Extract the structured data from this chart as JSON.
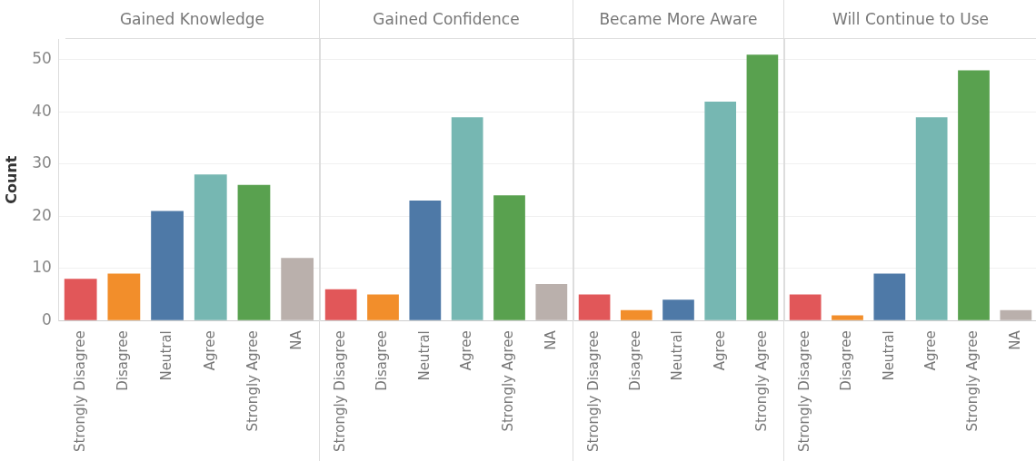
{
  "chart_data": [
    {
      "type": "bar",
      "title": "Gained Knowledge",
      "ylabel": "Count",
      "categories": [
        "Strongly Disagree",
        "Disagree",
        "Neutral",
        "Agree",
        "Strongly Agree",
        "NA"
      ],
      "values": [
        8,
        9,
        21,
        28,
        26,
        12
      ],
      "colors": [
        "#e15759",
        "#f28e2b",
        "#4e79a7",
        "#76b7b2",
        "#59a14f",
        "#bab0ac"
      ],
      "ylim": [
        0,
        54
      ],
      "yticks": [
        0,
        10,
        20,
        30,
        40,
        50
      ],
      "grid": "y"
    },
    {
      "type": "bar",
      "title": "Gained Confidence",
      "categories": [
        "Strongly Disagree",
        "Disagree",
        "Neutral",
        "Agree",
        "Strongly Agree",
        "NA"
      ],
      "values": [
        6,
        5,
        23,
        39,
        24,
        7
      ],
      "colors": [
        "#e15759",
        "#f28e2b",
        "#4e79a7",
        "#76b7b2",
        "#59a14f",
        "#bab0ac"
      ],
      "ylim": [
        0,
        54
      ],
      "yticks": [
        0,
        10,
        20,
        30,
        40,
        50
      ],
      "grid": "y",
      "tick_labels": "x"
    },
    {
      "type": "bar",
      "title": "Became More Aware",
      "categories": [
        "Strongly Disagree",
        "Disagree",
        "Neutral",
        "Agree",
        "Strongly Agree"
      ],
      "values": [
        5,
        2,
        4,
        42,
        51
      ],
      "colors": [
        "#e15759",
        "#f28e2b",
        "#4e79a7",
        "#76b7b2",
        "#59a14f"
      ],
      "ylim": [
        0,
        54
      ],
      "yticks": [
        0,
        10,
        20,
        30,
        40,
        50
      ],
      "grid": "y",
      "tick_labels": "x"
    },
    {
      "type": "bar",
      "title": "Will Continue to Use",
      "categories": [
        "Strongly Disagree",
        "Disagree",
        "Neutral",
        "Agree",
        "Strongly Agree",
        "NA"
      ],
      "values": [
        5,
        1,
        9,
        39,
        48,
        2
      ],
      "colors": [
        "#e15759",
        "#f28e2b",
        "#4e79a7",
        "#76b7b2",
        "#59a14f",
        "#bab0ac"
      ],
      "ylim": [
        0,
        54
      ],
      "yticks": [
        0,
        10,
        20,
        30,
        40,
        50
      ],
      "grid": "y",
      "tick_labels": "x"
    }
  ]
}
